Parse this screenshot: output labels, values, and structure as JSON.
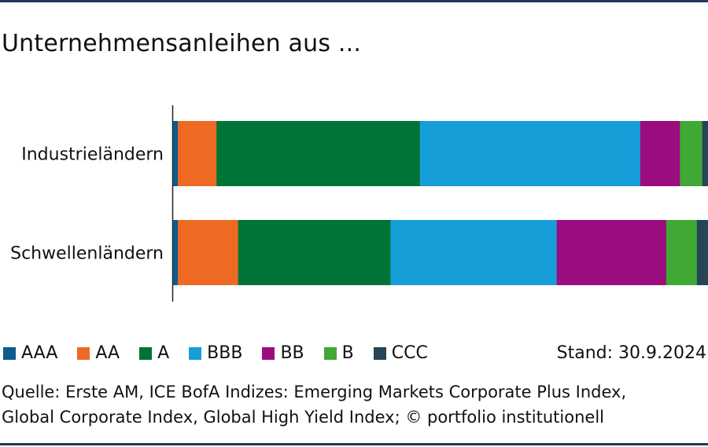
{
  "header": {
    "title": "Unternehmensanleihen aus ..."
  },
  "chart_data": {
    "type": "bar",
    "orientation": "horizontal",
    "stacked": true,
    "normalized": true,
    "categories": [
      "Industrieländern",
      "Schwellenländern"
    ],
    "series": [
      {
        "name": "AAA",
        "color": "#0b5c8f",
        "values": [
          0.9,
          0.9
        ]
      },
      {
        "name": "AA",
        "color": "#ee6a23",
        "values": [
          7.3,
          11.4
        ]
      },
      {
        "name": "A",
        "color": "#007336",
        "values": [
          38.4,
          28.8
        ]
      },
      {
        "name": "BBB",
        "color": "#169ed9",
        "values": [
          41.6,
          31.4
        ]
      },
      {
        "name": "BB",
        "color": "#9b0d7e",
        "values": [
          7.5,
          20.7
        ]
      },
      {
        "name": "B",
        "color": "#40a935",
        "values": [
          4.2,
          5.8
        ]
      },
      {
        "name": "CCC",
        "color": "#264556",
        "values": [
          1.1,
          2.1
        ]
      }
    ],
    "xlim": [
      0,
      100
    ],
    "grid": false,
    "legend_position": "bottom-left"
  },
  "footer": {
    "stand": "Stand: 30.9.2024",
    "source_lines": [
      "Quelle: Erste AM, ICE BofA Indizes: Emerging Markets Corporate Plus Index,",
      "Global Corporate Index, Global High Yield Index; © portfolio institutionell"
    ]
  }
}
